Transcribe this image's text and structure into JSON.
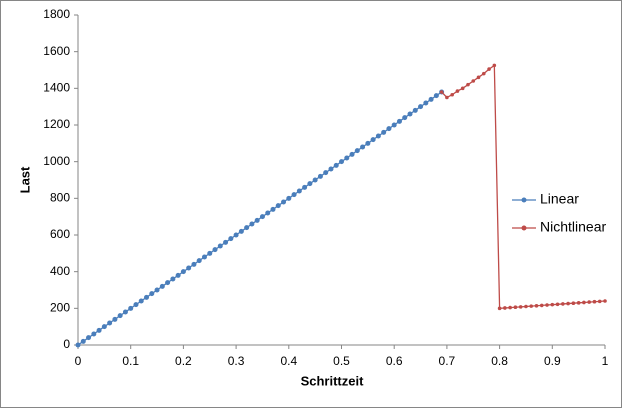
{
  "chart_data": {
    "type": "line",
    "xlabel": "Schrittzeit",
    "ylabel": "Last",
    "xlim": [
      0,
      1
    ],
    "xticks": [
      0,
      0.1,
      0.2,
      0.3,
      0.4,
      0.5,
      0.6,
      0.7,
      0.8,
      0.9,
      1
    ],
    "ylim": [
      0,
      1800
    ],
    "yticks": [
      0,
      200,
      400,
      600,
      800,
      1000,
      1200,
      1400,
      1600,
      1800
    ],
    "grid": false,
    "legend": "right",
    "series": [
      {
        "name": "Linear",
        "color": "#4a7ebb",
        "x": [
          0,
          0.01,
          0.02,
          0.03,
          0.04,
          0.05,
          0.06,
          0.07,
          0.08,
          0.09,
          0.1,
          0.11,
          0.12,
          0.13,
          0.14,
          0.15,
          0.16,
          0.17,
          0.18,
          0.19,
          0.2,
          0.21,
          0.22,
          0.23,
          0.24,
          0.25,
          0.26,
          0.27,
          0.28,
          0.29,
          0.3,
          0.31,
          0.32,
          0.33,
          0.34,
          0.35,
          0.36,
          0.37,
          0.38,
          0.39,
          0.4,
          0.41,
          0.42,
          0.43,
          0.44,
          0.45,
          0.46,
          0.47,
          0.48,
          0.49,
          0.5,
          0.51,
          0.52,
          0.53,
          0.54,
          0.55,
          0.56,
          0.57,
          0.58,
          0.59,
          0.6,
          0.61,
          0.62,
          0.63,
          0.64,
          0.65,
          0.66,
          0.67,
          0.68,
          0.69
        ],
        "values": [
          0,
          20,
          40,
          60,
          80,
          100,
          120,
          140,
          160,
          180,
          200,
          220,
          240,
          260,
          280,
          300,
          320,
          340,
          360,
          380,
          400,
          420,
          440,
          460,
          480,
          500,
          520,
          540,
          560,
          580,
          600,
          620,
          640,
          660,
          680,
          700,
          720,
          740,
          760,
          780,
          800,
          820,
          840,
          860,
          880,
          900,
          920,
          940,
          960,
          980,
          1000,
          1020,
          1040,
          1060,
          1080,
          1100,
          1120,
          1140,
          1160,
          1180,
          1200,
          1220,
          1240,
          1260,
          1280,
          1300,
          1320,
          1340,
          1360,
          1380
        ]
      },
      {
        "name": "Nichtlinear",
        "color": "#be4b48",
        "x": [
          0.69,
          0.7,
          0.71,
          0.72,
          0.73,
          0.74,
          0.75,
          0.76,
          0.77,
          0.78,
          0.79,
          0.8,
          0.81,
          0.82,
          0.83,
          0.84,
          0.85,
          0.86,
          0.87,
          0.88,
          0.89,
          0.9,
          0.91,
          0.92,
          0.93,
          0.94,
          0.95,
          0.96,
          0.97,
          0.98,
          0.99,
          1
        ],
        "values": [
          1380,
          1350,
          1365,
          1385,
          1400,
          1420,
          1440,
          1460,
          1480,
          1505,
          1525,
          200,
          202,
          204,
          206,
          208,
          210,
          212,
          214,
          216,
          218,
          220,
          222,
          224,
          226,
          228,
          230,
          232,
          234,
          236,
          238,
          240
        ]
      }
    ]
  }
}
